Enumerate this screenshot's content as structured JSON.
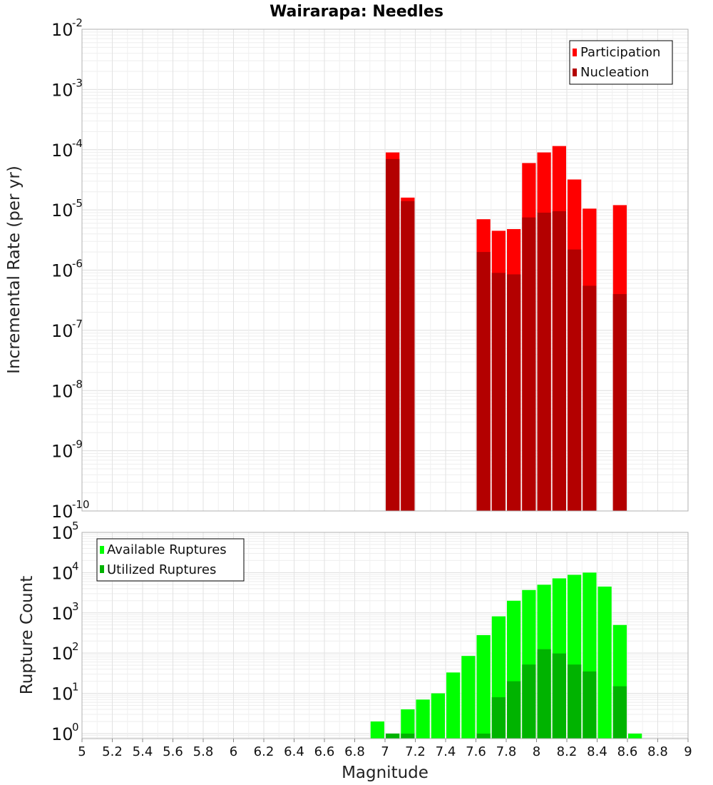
{
  "page": {
    "title": "Wairarapa: Needles",
    "xlabel": "Magnitude"
  },
  "chart_data": [
    {
      "type": "bar",
      "name": "rate-panel",
      "ylabel": "Incremental Rate (per yr)",
      "yscale": "log",
      "ylim": [
        1e-10,
        0.01
      ],
      "xlim": [
        5,
        9
      ],
      "x_ticks": [
        5,
        5.2,
        5.4,
        5.6,
        5.8,
        6,
        6.2,
        6.4,
        6.6,
        6.8,
        7,
        7.2,
        7.4,
        7.6,
        7.8,
        8,
        8.2,
        8.4,
        8.6,
        8.8,
        9
      ],
      "y_tick_exponents": [
        -10,
        -9,
        -8,
        -7,
        -6,
        -5,
        -4,
        -3,
        -2
      ],
      "grid": true,
      "legend_position": "top-right",
      "bin_width": 0.1,
      "series": [
        {
          "name": "Participation",
          "color": "#ff0000",
          "x": [
            7.05,
            7.15,
            7.65,
            7.75,
            7.85,
            7.95,
            8.05,
            8.15,
            8.25,
            8.35,
            8.55
          ],
          "values": [
            9e-05,
            1.6e-05,
            7e-06,
            4.5e-06,
            4.8e-06,
            6e-05,
            9e-05,
            0.000115,
            3.2e-05,
            1.05e-05,
            1.2e-05
          ]
        },
        {
          "name": "Nucleation",
          "color": "#b30000",
          "x": [
            7.05,
            7.15,
            7.65,
            7.75,
            7.85,
            7.95,
            8.05,
            8.15,
            8.25,
            8.35,
            8.55
          ],
          "values": [
            7e-05,
            1.4e-05,
            2e-06,
            9e-07,
            8.5e-07,
            7.5e-06,
            9e-06,
            9.5e-06,
            2.2e-06,
            5.5e-07,
            4e-07
          ]
        }
      ]
    },
    {
      "type": "bar",
      "name": "count-panel",
      "ylabel": "Rupture Count",
      "yscale": "log",
      "ylim": [
        0.75,
        100000.0
      ],
      "xlim": [
        5,
        9
      ],
      "y_tick_exponents": [
        0,
        1,
        2,
        3,
        4,
        5
      ],
      "grid": true,
      "legend_position": "top-left",
      "bin_width": 0.1,
      "series": [
        {
          "name": "Available Ruptures",
          "color": "#00ff00",
          "x": [
            6.95,
            7.05,
            7.15,
            7.25,
            7.35,
            7.45,
            7.55,
            7.65,
            7.75,
            7.85,
            7.95,
            8.05,
            8.15,
            8.25,
            8.35,
            8.45,
            8.55,
            8.65
          ],
          "values": [
            2,
            1,
            4,
            7,
            10,
            33,
            85,
            280,
            820,
            2000,
            3700,
            5000,
            7200,
            8800,
            10000,
            4500,
            500,
            1
          ]
        },
        {
          "name": "Utilized Ruptures",
          "color": "#00b300",
          "x": [
            7.05,
            7.15,
            7.65,
            7.75,
            7.85,
            7.95,
            8.05,
            8.15,
            8.25,
            8.35,
            8.55
          ],
          "values": [
            1,
            1,
            1,
            8,
            20,
            52,
            125,
            98,
            52,
            35,
            15
          ]
        }
      ]
    }
  ]
}
